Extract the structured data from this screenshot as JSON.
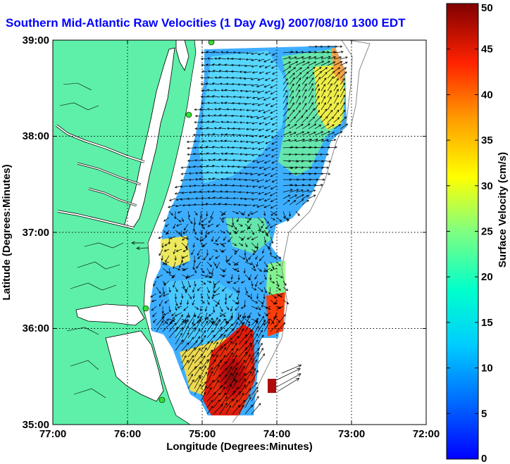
{
  "title": "Southern Mid-Atlantic Raw Velocities (1 Day Avg) 2007/08/10 1300 EDT",
  "xlabel": "Longitude (Degrees:Minutes)",
  "ylabel": "Latitude (Degrees:Minutes)",
  "x_ticks": [
    "77:00",
    "76:00",
    "75:00",
    "74:00",
    "73:00",
    "72:00"
  ],
  "y_ticks": [
    "39:00",
    "38:00",
    "37:00",
    "36:00",
    "35:00"
  ],
  "colorbar": {
    "label": "Surface Velocity (cm/s)",
    "min": 0,
    "max": 50,
    "ticks": [
      "0",
      "5",
      "10",
      "15",
      "20",
      "25",
      "30",
      "35",
      "40",
      "45",
      "50"
    ]
  },
  "colors": {
    "land": "#5ef0a8",
    "water_inland": "#ffffff",
    "title": "#0000ff",
    "grid": "#000000",
    "vector": "#000000",
    "station": "#33dd33"
  }
}
